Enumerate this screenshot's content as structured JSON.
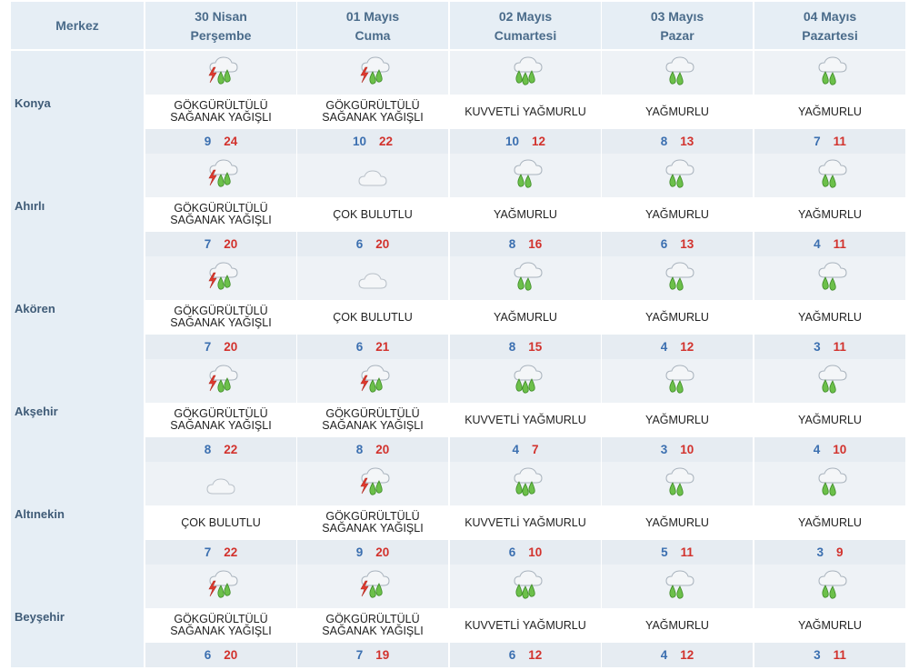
{
  "header": {
    "merkez_label": "Merkez",
    "days": [
      {
        "date": "30 Nisan",
        "weekday": "Perşembe"
      },
      {
        "date": "01 Mayıs",
        "weekday": "Cuma"
      },
      {
        "date": "02 Mayıs",
        "weekday": "Cumartesi"
      },
      {
        "date": "03 Mayıs",
        "weekday": "Pazar"
      },
      {
        "date": "04 Mayıs",
        "weekday": "Pazartesi"
      }
    ]
  },
  "colors": {
    "min_temp": "#3b6fb0",
    "max_temp": "#d2322d",
    "header_bg": "#e6eef5",
    "header_text": "#4a6b8a"
  },
  "rows": [
    {
      "city": "Konya",
      "days": [
        {
          "icon": "thunderstorm-rain-icon",
          "desc": "GÖKGÜRÜLTÜLÜ SAĞANAK YAĞIŞLI",
          "min": "9",
          "max": "24"
        },
        {
          "icon": "thunderstorm-rain-icon",
          "desc": "GÖKGÜRÜLTÜLÜ SAĞANAK YAĞIŞLI",
          "min": "10",
          "max": "22"
        },
        {
          "icon": "heavy-rain-icon",
          "desc": "KUVVETLİ YAĞMURLU",
          "min": "10",
          "max": "12"
        },
        {
          "icon": "rain-icon",
          "desc": "YAĞMURLU",
          "min": "8",
          "max": "13"
        },
        {
          "icon": "rain-icon",
          "desc": "YAĞMURLU",
          "min": "7",
          "max": "11"
        }
      ]
    },
    {
      "city": "Ahırlı",
      "days": [
        {
          "icon": "thunderstorm-rain-icon",
          "desc": "GÖKGÜRÜLTÜLÜ SAĞANAK YAĞIŞLI",
          "min": "7",
          "max": "20"
        },
        {
          "icon": "cloudy-icon",
          "desc": "ÇOK BULUTLU",
          "min": "6",
          "max": "20"
        },
        {
          "icon": "rain-icon",
          "desc": "YAĞMURLU",
          "min": "8",
          "max": "16"
        },
        {
          "icon": "rain-icon",
          "desc": "YAĞMURLU",
          "min": "6",
          "max": "13"
        },
        {
          "icon": "rain-icon",
          "desc": "YAĞMURLU",
          "min": "4",
          "max": "11"
        }
      ]
    },
    {
      "city": "Akören",
      "days": [
        {
          "icon": "thunderstorm-rain-icon",
          "desc": "GÖKGÜRÜLTÜLÜ SAĞANAK YAĞIŞLI",
          "min": "7",
          "max": "20"
        },
        {
          "icon": "cloudy-icon",
          "desc": "ÇOK BULUTLU",
          "min": "6",
          "max": "21"
        },
        {
          "icon": "rain-icon",
          "desc": "YAĞMURLU",
          "min": "8",
          "max": "15"
        },
        {
          "icon": "rain-icon",
          "desc": "YAĞMURLU",
          "min": "4",
          "max": "12"
        },
        {
          "icon": "rain-icon",
          "desc": "YAĞMURLU",
          "min": "3",
          "max": "11"
        }
      ]
    },
    {
      "city": "Akşehir",
      "days": [
        {
          "icon": "thunderstorm-rain-icon",
          "desc": "GÖKGÜRÜLTÜLÜ SAĞANAK YAĞIŞLI",
          "min": "8",
          "max": "22"
        },
        {
          "icon": "thunderstorm-rain-icon",
          "desc": "GÖKGÜRÜLTÜLÜ SAĞANAK YAĞIŞLI",
          "min": "8",
          "max": "20"
        },
        {
          "icon": "heavy-rain-icon",
          "desc": "KUVVETLİ YAĞMURLU",
          "min": "4",
          "max": "7"
        },
        {
          "icon": "rain-icon",
          "desc": "YAĞMURLU",
          "min": "3",
          "max": "10"
        },
        {
          "icon": "rain-icon",
          "desc": "YAĞMURLU",
          "min": "4",
          "max": "10"
        }
      ]
    },
    {
      "city": "Altınekin",
      "days": [
        {
          "icon": "cloudy-icon",
          "desc": "ÇOK BULUTLU",
          "min": "7",
          "max": "22"
        },
        {
          "icon": "thunderstorm-rain-icon",
          "desc": "GÖKGÜRÜLTÜLÜ SAĞANAK YAĞIŞLI",
          "min": "9",
          "max": "20"
        },
        {
          "icon": "heavy-rain-icon",
          "desc": "KUVVETLİ YAĞMURLU",
          "min": "6",
          "max": "10"
        },
        {
          "icon": "rain-icon",
          "desc": "YAĞMURLU",
          "min": "5",
          "max": "11"
        },
        {
          "icon": "rain-icon",
          "desc": "YAĞMURLU",
          "min": "3",
          "max": "9"
        }
      ]
    },
    {
      "city": "Beyşehir",
      "days": [
        {
          "icon": "thunderstorm-rain-icon",
          "desc": "GÖKGÜRÜLTÜLÜ SAĞANAK YAĞIŞLI",
          "min": "6",
          "max": "20"
        },
        {
          "icon": "thunderstorm-rain-icon",
          "desc": "GÖKGÜRÜLTÜLÜ SAĞANAK YAĞIŞLI",
          "min": "7",
          "max": "19"
        },
        {
          "icon": "heavy-rain-icon",
          "desc": "KUVVETLİ YAĞMURLU",
          "min": "6",
          "max": "12"
        },
        {
          "icon": "rain-icon",
          "desc": "YAĞMURLU",
          "min": "4",
          "max": "12"
        },
        {
          "icon": "rain-icon",
          "desc": "YAĞMURLU",
          "min": "3",
          "max": "11"
        }
      ]
    }
  ]
}
